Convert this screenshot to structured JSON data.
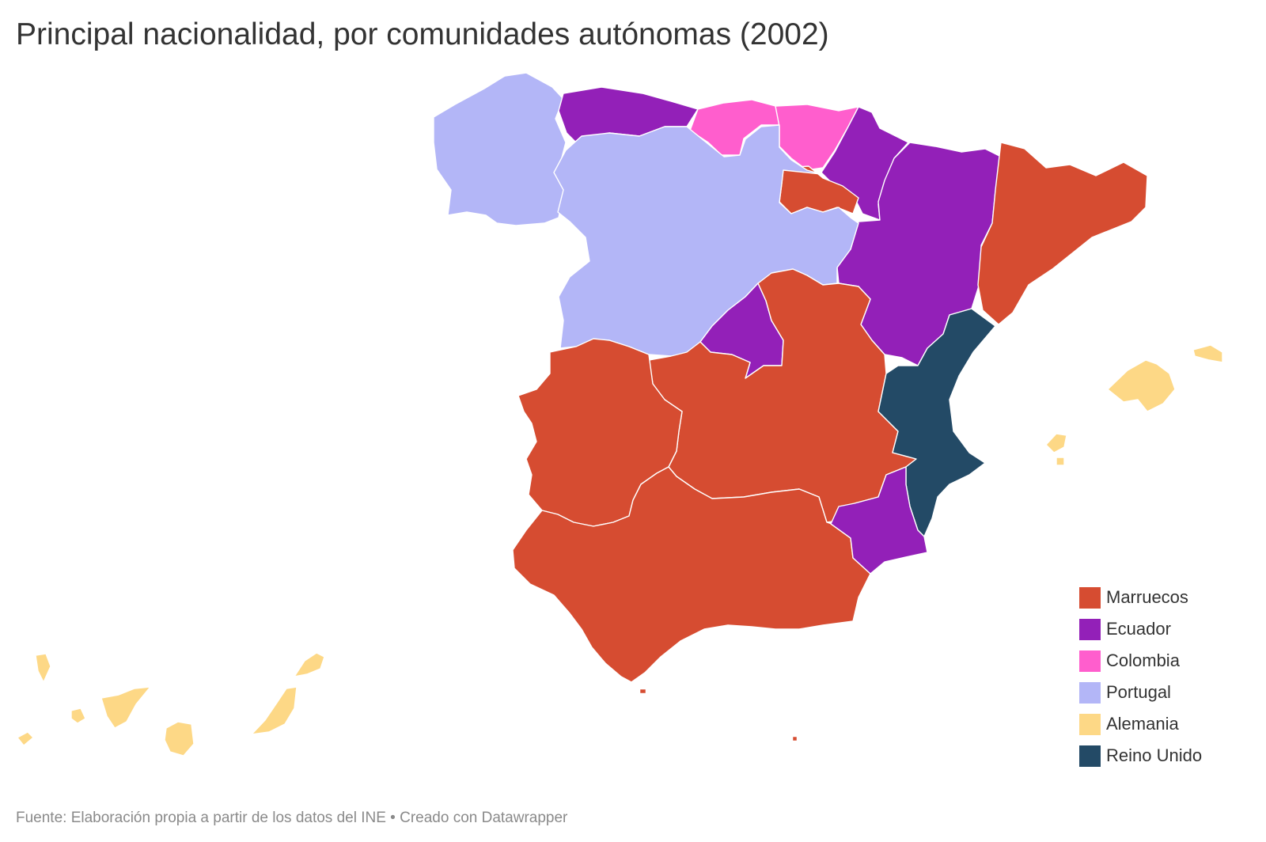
{
  "title": "Principal nacionalidad, por comunidades autónomas (2002)",
  "legend": [
    {
      "label": "Marruecos",
      "color": "#d64c31"
    },
    {
      "label": "Ecuador",
      "color": "#9320b8"
    },
    {
      "label": "Colombia",
      "color": "#ff5ecd"
    },
    {
      "label": "Portugal",
      "color": "#b3b6f7"
    },
    {
      "label": "Alemania",
      "color": "#fdd886"
    },
    {
      "label": "Reino Unido",
      "color": "#234a66"
    }
  ],
  "regions": [
    {
      "name": "Galicia",
      "nationality": "Portugal"
    },
    {
      "name": "Asturias",
      "nationality": "Ecuador"
    },
    {
      "name": "Cantabria",
      "nationality": "Colombia"
    },
    {
      "name": "País Vasco",
      "nationality": "Colombia"
    },
    {
      "name": "Navarra",
      "nationality": "Ecuador"
    },
    {
      "name": "La Rioja",
      "nationality": "Marruecos"
    },
    {
      "name": "Aragón",
      "nationality": "Ecuador"
    },
    {
      "name": "Cataluña",
      "nationality": "Marruecos"
    },
    {
      "name": "Castilla y León",
      "nationality": "Portugal"
    },
    {
      "name": "Madrid",
      "nationality": "Ecuador"
    },
    {
      "name": "Castilla-La Mancha",
      "nationality": "Marruecos"
    },
    {
      "name": "Comunidad Valenciana",
      "nationality": "Reino Unido"
    },
    {
      "name": "Extremadura",
      "nationality": "Marruecos"
    },
    {
      "name": "Andalucía",
      "nationality": "Marruecos"
    },
    {
      "name": "Murcia",
      "nationality": "Ecuador"
    },
    {
      "name": "Islas Baleares",
      "nationality": "Alemania"
    },
    {
      "name": "Canarias",
      "nationality": "Alemania"
    },
    {
      "name": "Ceuta",
      "nationality": "Marruecos"
    },
    {
      "name": "Melilla",
      "nationality": "Marruecos"
    }
  ],
  "footer": "Fuente: Elaboración propia a partir de los datos del INE • Creado con Datawrapper"
}
